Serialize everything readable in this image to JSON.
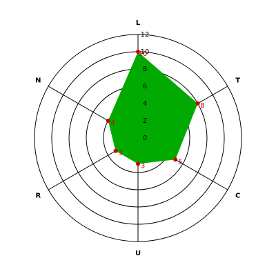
{
  "chart_data": {
    "type": "radar",
    "categories": [
      "L",
      "T",
      "C",
      "U",
      "R",
      "N"
    ],
    "values": [
      10,
      8,
      5,
      3,
      3,
      4
    ],
    "color": "#00aa00",
    "marker_color": "#cc0000",
    "rlim": [
      0,
      12
    ],
    "rticks": [
      0,
      2,
      4,
      6,
      8,
      10,
      12
    ],
    "grid": true
  }
}
